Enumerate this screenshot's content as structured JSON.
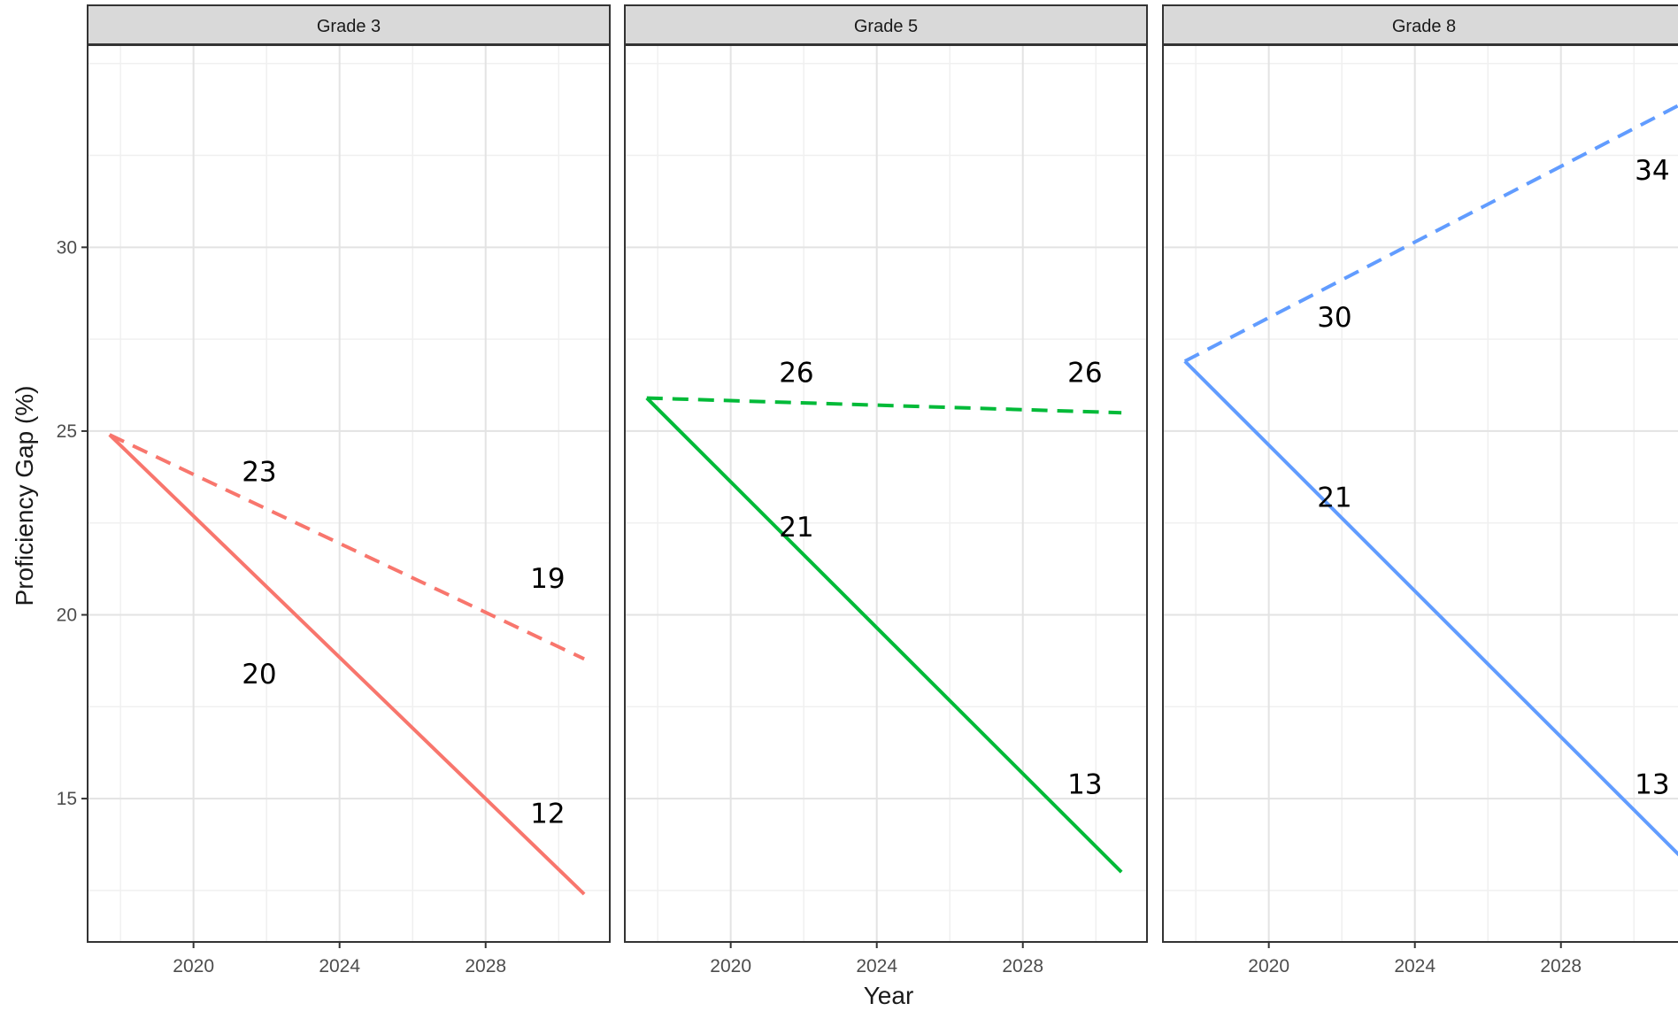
{
  "chart_data": {
    "type": "line",
    "facet_variable": "Grade",
    "xlabel": "Year",
    "ylabel": "Proficiency Gap (%)",
    "x_ticks": [
      2020,
      2024,
      2028
    ],
    "y_ticks": [
      15,
      20,
      25,
      30
    ],
    "xlim": [
      2017.1,
      2031.4
    ],
    "ylim": [
      11.1,
      35.5
    ],
    "grid": true,
    "legend": "none",
    "panels": [
      {
        "strip_label": "Grade 3",
        "color": "#F8766D",
        "series": [
          {
            "linetype": "solid",
            "x": [
              2017.7,
              2030.7
            ],
            "y": [
              24.9,
              12.4
            ]
          },
          {
            "linetype": "dashed",
            "x": [
              2017.7,
              2030.7
            ],
            "y": [
              24.9,
              18.8
            ]
          }
        ],
        "labels": [
          {
            "text": "23",
            "x": 2021.8,
            "y": 23.9
          },
          {
            "text": "19",
            "x": 2029.7,
            "y": 21.0
          },
          {
            "text": "20",
            "x": 2021.8,
            "y": 18.4
          },
          {
            "text": "12",
            "x": 2029.7,
            "y": 14.6
          }
        ]
      },
      {
        "strip_label": "Grade 5",
        "color": "#00BA38",
        "series": [
          {
            "linetype": "solid",
            "x": [
              2017.7,
              2030.7
            ],
            "y": [
              25.9,
              13.0
            ]
          },
          {
            "linetype": "dashed",
            "x": [
              2017.7,
              2030.7
            ],
            "y": [
              25.9,
              25.5
            ]
          }
        ],
        "labels": [
          {
            "text": "26",
            "x": 2021.8,
            "y": 26.6
          },
          {
            "text": "26",
            "x": 2029.7,
            "y": 26.6
          },
          {
            "text": "21",
            "x": 2021.8,
            "y": 22.4
          },
          {
            "text": "13",
            "x": 2029.7,
            "y": 15.4
          }
        ]
      },
      {
        "strip_label": "Grade 8",
        "color": "#619CFF",
        "series": [
          {
            "linetype": "solid",
            "x": [
              2017.7,
              2031.3
            ],
            "y": [
              26.9,
              13.4
            ]
          },
          {
            "linetype": "dashed",
            "x": [
              2017.7,
              2031.3
            ],
            "y": [
              26.9,
              33.9
            ]
          }
        ],
        "labels": [
          {
            "text": "30",
            "x": 2021.8,
            "y": 28.1
          },
          {
            "text": "34",
            "x": 2030.5,
            "y": 32.1
          },
          {
            "text": "21",
            "x": 2021.8,
            "y": 23.2
          },
          {
            "text": "13",
            "x": 2030.5,
            "y": 15.4
          }
        ]
      }
    ]
  }
}
